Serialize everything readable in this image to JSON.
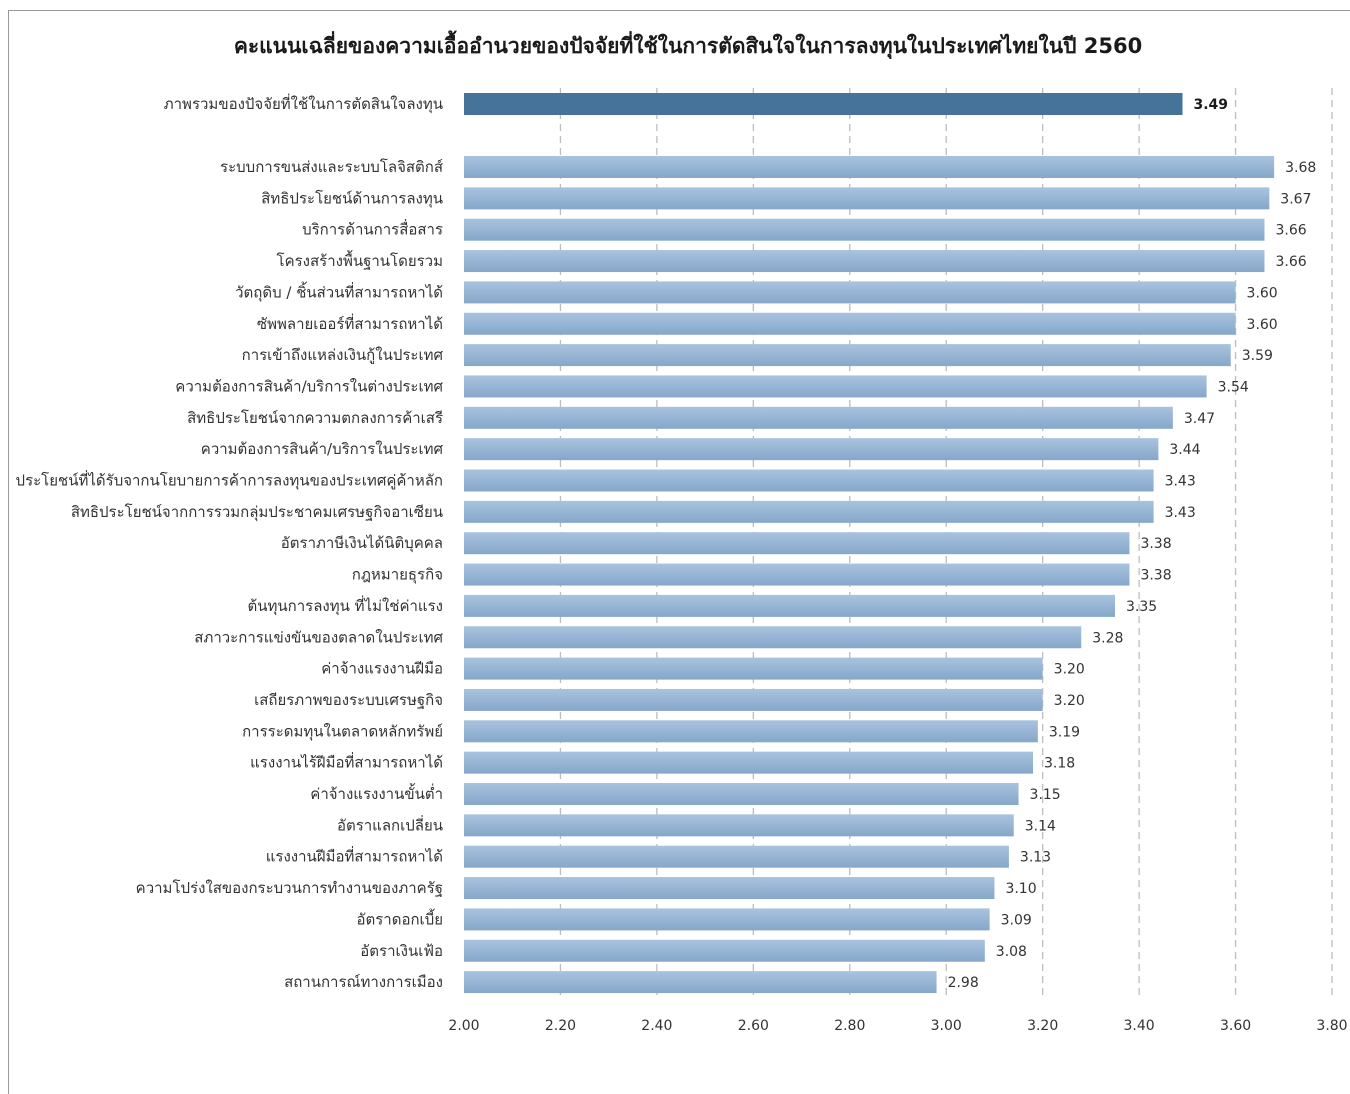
{
  "chart_data": {
    "type": "bar",
    "orientation": "horizontal",
    "title": "คะแนนเฉลี่ยของความเอื้ออำนวยของปัจจัยที่ใช้ในการตัดสินใจในการลงทุนในประเทศไทยในปี  2560",
    "xlim": [
      2.0,
      3.8
    ],
    "x_ticks": [
      "2.00",
      "2.20",
      "2.40",
      "2.60",
      "2.80",
      "3.00",
      "3.20",
      "3.40",
      "3.60",
      "3.80"
    ],
    "grid": "vertical dashed",
    "highlight": {
      "category": "ภาพรวมของปัจจัยที่ใช้ในการตัดสินใจลงทุน",
      "value": 3.49,
      "label": "3.49",
      "color": "#457399"
    },
    "bar_color": "#9bb7d4",
    "bar_gradient_top": "#a9c3de",
    "bar_gradient_bottom": "#85a7ca",
    "categories": [
      "ระบบการขนส่งและระบบโลจิสติกส์",
      "สิทธิประโยชน์ด้านการลงทุน",
      "บริการด้านการสื่อสาร",
      "โครงสร้างพื้นฐานโดยรวม",
      "วัตถุดิบ / ชิ้นส่วนที่สามารถหาได้",
      "ซัพพลายเออร์ที่สามารถหาได้",
      "การเข้าถึงแหล่งเงินกู้ในประเทศ",
      "ความต้องการสินค้า/บริการในต่างประเทศ",
      "สิทธิประโยชน์จากความตกลงการค้าเสรี",
      "ความต้องการสินค้า/บริการในประเทศ",
      "ประโยชน์ที่ได้รับจากนโยบายการค้าการลงทุนของประเทศคู่ค้าหลัก",
      "สิทธิประโยชน์จากการรวมกลุ่มประชาคมเศรษฐกิจอาเซียน",
      "อัตราภาษีเงินได้นิติบุคคล",
      "กฎหมายธุรกิจ",
      "ต้นทุนการลงทุน ที่ไม่ใช่ค่าแรง",
      "สภาวะการแข่งขันของตลาดในประเทศ",
      "ค่าจ้างแรงงานฝีมือ",
      "เสถียรภาพของระบบเศรษฐกิจ",
      "การระดมทุนในตลาดหลักทรัพย์",
      "แรงงานไร้ฝีมือที่สามารถหาได้",
      "ค่าจ้างแรงงานขั้นต่ำ",
      "อัตราแลกเปลี่ยน",
      "แรงงานฝีมือที่สามารถหาได้",
      "ความโปร่งใสของกระบวนการทำงานของภาครัฐ",
      "อัตราดอกเบี้ย",
      "อัตราเงินเฟ้อ",
      "สถานการณ์ทางการเมือง"
    ],
    "values": [
      3.68,
      3.67,
      3.66,
      3.66,
      3.6,
      3.6,
      3.59,
      3.54,
      3.47,
      3.44,
      3.43,
      3.43,
      3.38,
      3.38,
      3.35,
      3.28,
      3.2,
      3.2,
      3.19,
      3.18,
      3.15,
      3.14,
      3.13,
      3.1,
      3.09,
      3.08,
      2.98
    ],
    "value_labels": [
      "3.68",
      "3.67",
      "3.66",
      "3.66",
      "3.60",
      "3.60",
      "3.59",
      "3.54",
      "3.47",
      "3.44",
      "3.43",
      "3.43",
      "3.38",
      "3.38",
      "3.35",
      "3.28",
      "3.20",
      "3.20",
      "3.19",
      "3.18",
      "3.15",
      "3.14",
      "3.13",
      "3.10",
      "3.09",
      "3.08",
      "2.98"
    ]
  }
}
